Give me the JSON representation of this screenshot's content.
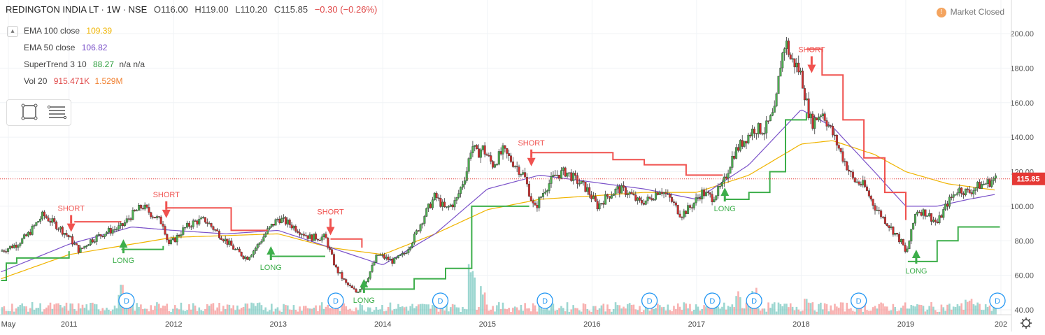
{
  "header": {
    "symbol": "REDINGTON INDIA LT · 1W · NSE",
    "open": "O116.00",
    "high": "H119.00",
    "low": "L110.20",
    "close": "C115.85",
    "change": "−0.30 (−0.26%)"
  },
  "status": {
    "icon": "alert-icon",
    "text": "Market Closed"
  },
  "indicators": {
    "ema100_label": "EMA 100 close",
    "ema100_value": "109.39",
    "ema100_color": "#f0b400",
    "ema50_label": "EMA 50 close",
    "ema50_value": "106.82",
    "ema50_color": "#7b52c9",
    "supertrend_label": "SuperTrend 3 10",
    "supertrend_value": "88.27",
    "supertrend_extra": "n/a  n/a",
    "supertrend_color": "#2e9e3e",
    "vol_label": "Vol 20",
    "vol_value1": "915.471K",
    "vol_value2": "1.529M",
    "vol_color1": "#e04848",
    "vol_color2": "#f08030"
  },
  "toolbox": {
    "icons": [
      "rectangle-tool-icon",
      "list-lines-icon"
    ]
  },
  "colors": {
    "up": "#26a69a",
    "down": "#ef5350",
    "candle_up": "#4caf50",
    "candle_down": "#d32f2f",
    "long": "#3cae4a",
    "short": "#f0524f",
    "price_badge": "#e53935"
  },
  "chart_data": {
    "type": "candlestick",
    "timeframe": "1W",
    "ylim": [
      40,
      210
    ],
    "y_ticks": [
      "200.00",
      "180.00",
      "160.00",
      "140.00",
      "120.00",
      "100.00",
      "80.00",
      "60.00",
      "40.00"
    ],
    "x_ticks": [
      "May",
      "2011",
      "2012",
      "2013",
      "2014",
      "2015",
      "2016",
      "2017",
      "2018",
      "2019",
      "202"
    ],
    "last_price": "115.85",
    "approx_close_path": [
      [
        2010.35,
        74
      ],
      [
        2010.5,
        78
      ],
      [
        2010.6,
        83
      ],
      [
        2010.75,
        95
      ],
      [
        2010.9,
        88
      ],
      [
        2011.0,
        82
      ],
      [
        2011.1,
        74
      ],
      [
        2011.2,
        80
      ],
      [
        2011.35,
        85
      ],
      [
        2011.5,
        88
      ],
      [
        2011.6,
        95
      ],
      [
        2011.7,
        100
      ],
      [
        2011.8,
        95
      ],
      [
        2011.9,
        90
      ],
      [
        2011.95,
        78
      ],
      [
        2012.0,
        80
      ],
      [
        2012.1,
        87
      ],
      [
        2012.2,
        91
      ],
      [
        2012.3,
        92
      ],
      [
        2012.4,
        86
      ],
      [
        2012.5,
        80
      ],
      [
        2012.6,
        74
      ],
      [
        2012.7,
        70
      ],
      [
        2012.8,
        77
      ],
      [
        2012.9,
        86
      ],
      [
        2013.0,
        93
      ],
      [
        2013.1,
        90
      ],
      [
        2013.2,
        86
      ],
      [
        2013.3,
        82
      ],
      [
        2013.45,
        82
      ],
      [
        2013.55,
        64
      ],
      [
        2013.65,
        55
      ],
      [
        2013.75,
        50
      ],
      [
        2013.85,
        58
      ],
      [
        2013.95,
        72
      ],
      [
        2014.1,
        68
      ],
      [
        2014.2,
        72
      ],
      [
        2014.3,
        82
      ],
      [
        2014.4,
        95
      ],
      [
        2014.5,
        106
      ],
      [
        2014.6,
        98
      ],
      [
        2014.7,
        103
      ],
      [
        2014.8,
        120
      ],
      [
        2014.85,
        136
      ],
      [
        2014.9,
        130
      ],
      [
        2014.95,
        134
      ],
      [
        2015.05,
        124
      ],
      [
        2015.15,
        132
      ],
      [
        2015.25,
        125
      ],
      [
        2015.35,
        118
      ],
      [
        2015.45,
        98
      ],
      [
        2015.55,
        110
      ],
      [
        2015.65,
        118
      ],
      [
        2015.75,
        120
      ],
      [
        2015.85,
        115
      ],
      [
        2015.95,
        110
      ],
      [
        2016.05,
        100
      ],
      [
        2016.15,
        106
      ],
      [
        2016.25,
        110
      ],
      [
        2016.35,
        108
      ],
      [
        2016.45,
        102
      ],
      [
        2016.55,
        104
      ],
      [
        2016.65,
        110
      ],
      [
        2016.75,
        104
      ],
      [
        2016.85,
        95
      ],
      [
        2016.95,
        100
      ],
      [
        2017.05,
        108
      ],
      [
        2017.15,
        105
      ],
      [
        2017.25,
        112
      ],
      [
        2017.35,
        130
      ],
      [
        2017.45,
        138
      ],
      [
        2017.55,
        145
      ],
      [
        2017.65,
        144
      ],
      [
        2017.75,
        155
      ],
      [
        2017.8,
        182
      ],
      [
        2017.85,
        196
      ],
      [
        2017.9,
        185
      ],
      [
        2017.95,
        182
      ],
      [
        2018.0,
        176
      ],
      [
        2018.05,
        160
      ],
      [
        2018.1,
        148
      ],
      [
        2018.2,
        155
      ],
      [
        2018.3,
        142
      ],
      [
        2018.4,
        128
      ],
      [
        2018.5,
        115
      ],
      [
        2018.6,
        112
      ],
      [
        2018.7,
        100
      ],
      [
        2018.8,
        92
      ],
      [
        2018.9,
        84
      ],
      [
        2018.97,
        78
      ],
      [
        2019.0,
        72
      ],
      [
        2019.05,
        84
      ],
      [
        2019.1,
        98
      ],
      [
        2019.2,
        96
      ],
      [
        2019.3,
        90
      ],
      [
        2019.4,
        102
      ],
      [
        2019.5,
        110
      ],
      [
        2019.6,
        108
      ],
      [
        2019.7,
        112
      ],
      [
        2019.8,
        114
      ],
      [
        2019.85,
        116
      ]
    ],
    "ema100_path": [
      [
        2010.35,
        58
      ],
      [
        2011.0,
        72
      ],
      [
        2012.0,
        82
      ],
      [
        2013.0,
        84
      ],
      [
        2013.5,
        76
      ],
      [
        2014.0,
        72
      ],
      [
        2014.5,
        84
      ],
      [
        2015.0,
        98
      ],
      [
        2015.5,
        104
      ],
      [
        2016.0,
        106
      ],
      [
        2016.5,
        108
      ],
      [
        2017.0,
        108
      ],
      [
        2017.5,
        118
      ],
      [
        2018.0,
        136
      ],
      [
        2018.3,
        138
      ],
      [
        2018.7,
        130
      ],
      [
        2019.0,
        120
      ],
      [
        2019.4,
        113
      ],
      [
        2019.85,
        109.4
      ]
    ],
    "ema50_path": [
      [
        2010.35,
        62
      ],
      [
        2011.0,
        78
      ],
      [
        2011.6,
        88
      ],
      [
        2012.0,
        86
      ],
      [
        2012.5,
        84
      ],
      [
        2013.0,
        86
      ],
      [
        2013.5,
        76
      ],
      [
        2014.0,
        66
      ],
      [
        2014.5,
        84
      ],
      [
        2015.0,
        110
      ],
      [
        2015.5,
        118
      ],
      [
        2016.0,
        114
      ],
      [
        2016.5,
        110
      ],
      [
        2017.0,
        104
      ],
      [
        2017.5,
        124
      ],
      [
        2018.0,
        156
      ],
      [
        2018.3,
        146
      ],
      [
        2018.7,
        120
      ],
      [
        2019.0,
        100
      ],
      [
        2019.3,
        100
      ],
      [
        2019.6,
        104
      ],
      [
        2019.85,
        106.8
      ]
    ],
    "supertrend_segments": [
      {
        "trend": "up",
        "points": [
          [
            2010.35,
            57
          ],
          [
            2010.4,
            67
          ],
          [
            2010.5,
            70
          ],
          [
            2011.0,
            74
          ]
        ]
      },
      {
        "trend": "down",
        "points": [
          [
            2011.05,
            91
          ],
          [
            2011.5,
            91
          ]
        ]
      },
      {
        "trend": "up",
        "points": [
          [
            2011.5,
            75
          ],
          [
            2011.9,
            77
          ]
        ]
      },
      {
        "trend": "down",
        "points": [
          [
            2011.93,
            99
          ],
          [
            2012.4,
            99
          ],
          [
            2012.55,
            86
          ],
          [
            2012.9,
            86
          ]
        ]
      },
      {
        "trend": "up",
        "points": [
          [
            2012.92,
            71
          ],
          [
            2013.45,
            71
          ]
        ]
      },
      {
        "trend": "down",
        "points": [
          [
            2013.5,
            81
          ],
          [
            2013.8,
            76
          ]
        ]
      },
      {
        "trend": "up",
        "points": [
          [
            2013.82,
            52
          ],
          [
            2014.2,
            52
          ],
          [
            2014.3,
            58
          ],
          [
            2014.6,
            64
          ],
          [
            2014.85,
            100
          ],
          [
            2015.4,
            100
          ]
        ]
      },
      {
        "trend": "down",
        "points": [
          [
            2015.42,
            131
          ],
          [
            2016.05,
            131
          ],
          [
            2016.2,
            127
          ],
          [
            2016.5,
            124
          ],
          [
            2016.9,
            118
          ],
          [
            2017.25,
            118
          ]
        ]
      },
      {
        "trend": "up",
        "points": [
          [
            2017.27,
            104
          ],
          [
            2017.5,
            108
          ],
          [
            2017.7,
            120
          ],
          [
            2017.85,
            150
          ],
          [
            2018.05,
            154
          ]
        ]
      },
      {
        "trend": "down",
        "points": [
          [
            2018.05,
            191
          ],
          [
            2018.2,
            176
          ],
          [
            2018.4,
            150
          ],
          [
            2018.6,
            128
          ],
          [
            2018.8,
            108
          ],
          [
            2019.0,
            92
          ]
        ]
      },
      {
        "trend": "up",
        "points": [
          [
            2019.02,
            68
          ],
          [
            2019.3,
            80
          ],
          [
            2019.5,
            88
          ],
          [
            2019.9,
            88
          ]
        ]
      }
    ],
    "signals": [
      {
        "type": "SHORT",
        "label": "SHORT",
        "x": 2011.02,
        "y": 90
      },
      {
        "type": "LONG",
        "label": "LONG",
        "x": 2011.52,
        "y": 76
      },
      {
        "type": "SHORT",
        "label": "SHORT",
        "x": 2011.93,
        "y": 98
      },
      {
        "type": "LONG",
        "label": "LONG",
        "x": 2012.93,
        "y": 72
      },
      {
        "type": "SHORT",
        "label": "SHORT",
        "x": 2013.5,
        "y": 88
      },
      {
        "type": "LONG",
        "label": "LONG",
        "x": 2013.82,
        "y": 53
      },
      {
        "type": "SHORT",
        "label": "SHORT",
        "x": 2015.42,
        "y": 128
      },
      {
        "type": "LONG",
        "label": "LONG",
        "x": 2017.27,
        "y": 106
      },
      {
        "type": "SHORT",
        "label": "SHORT",
        "x": 2018.1,
        "y": 182
      },
      {
        "type": "LONG",
        "label": "LONG",
        "x": 2019.1,
        "y": 70
      }
    ],
    "dividend_markers": {
      "label": "D",
      "x": [
        2011.55,
        2013.55,
        2014.55,
        2015.55,
        2016.55,
        2017.15,
        2017.55,
        2018.55,
        2019.9
      ]
    },
    "volume_spikes": [
      [
        2011.5,
        0.55
      ],
      [
        2014.85,
        1.0
      ],
      [
        2014.95,
        0.6
      ],
      [
        2017.4,
        0.45
      ],
      [
        2017.55,
        0.55
      ],
      [
        2018.05,
        0.35
      ],
      [
        2019.6,
        0.35
      ]
    ]
  }
}
